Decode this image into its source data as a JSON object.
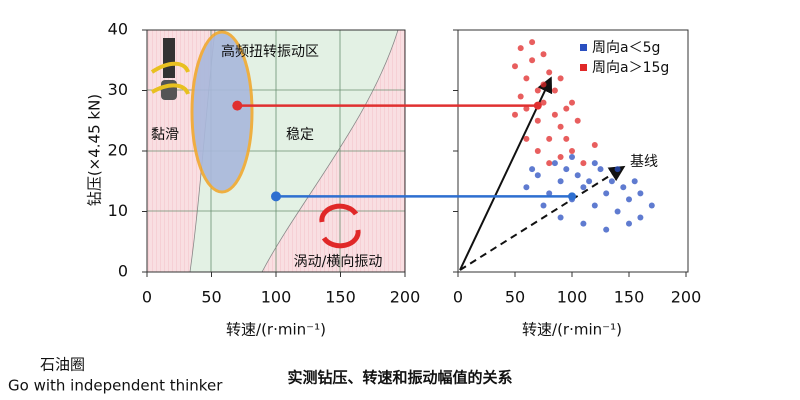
{
  "charts": [
    {
      "type": "region",
      "ylabel": "钻压(×4.45 kN)",
      "xlabel": "转速/(r·min⁻¹)",
      "xlim": [
        0,
        200
      ],
      "ylim": [
        0,
        40
      ],
      "xticks": [
        0,
        50,
        100,
        150,
        200
      ],
      "yticks": [
        0,
        10,
        20,
        30,
        40
      ],
      "regions": [
        "高频扭转振动区",
        "黏滑",
        "稳定",
        "涡动/横向振动"
      ],
      "points": [
        {
          "x": 70,
          "y": 27.5,
          "color": "#e03030"
        },
        {
          "x": 100,
          "y": 12.5,
          "color": "#2e6fd0"
        }
      ]
    },
    {
      "type": "scatter",
      "xlabel": "转速/(r·min⁻¹)",
      "annotation": "基线",
      "xlim": [
        0,
        200
      ],
      "ylim": [
        0,
        40
      ],
      "xticks": [
        0,
        50,
        100,
        150,
        200
      ],
      "yticks": [
        0,
        10,
        20,
        30,
        40
      ],
      "series": [
        {
          "name": "周向a＜5g",
          "color": "#2a4fc0",
          "x": [
            60,
            70,
            80,
            90,
            100,
            110,
            120,
            130,
            140,
            150,
            160,
            170,
            85,
            95,
            105,
            115,
            125,
            135,
            145,
            155,
            75,
            90,
            110,
            130,
            150,
            100,
            120,
            65,
            140,
            160
          ],
          "values": [
            14,
            16,
            13,
            15,
            12,
            14,
            11,
            13,
            10,
            12,
            9,
            11,
            18,
            17,
            16,
            15,
            17,
            15,
            14,
            15,
            11,
            9,
            8,
            7,
            8,
            19,
            18,
            17,
            17,
            13
          ]
        },
        {
          "name": "周向a＞15g",
          "color": "#e02828",
          "x": [
            50,
            55,
            60,
            65,
            70,
            75,
            80,
            85,
            90,
            95,
            100,
            60,
            70,
            80,
            90,
            65,
            75,
            85,
            95,
            105,
            55,
            110,
            100,
            70,
            80,
            60,
            90,
            120,
            50,
            75
          ],
          "values": [
            34,
            37,
            32,
            35,
            30,
            28,
            33,
            26,
            24,
            22,
            20,
            27,
            25,
            22,
            19,
            38,
            36,
            30,
            27,
            25,
            29,
            18,
            28,
            20,
            18,
            22,
            32,
            21,
            26,
            31
          ]
        }
      ]
    }
  ],
  "caption": "实测钻压、转速和振动幅值的关系",
  "watermark": {
    "name": "石油圈",
    "slogan": "Go with independent thinker"
  }
}
